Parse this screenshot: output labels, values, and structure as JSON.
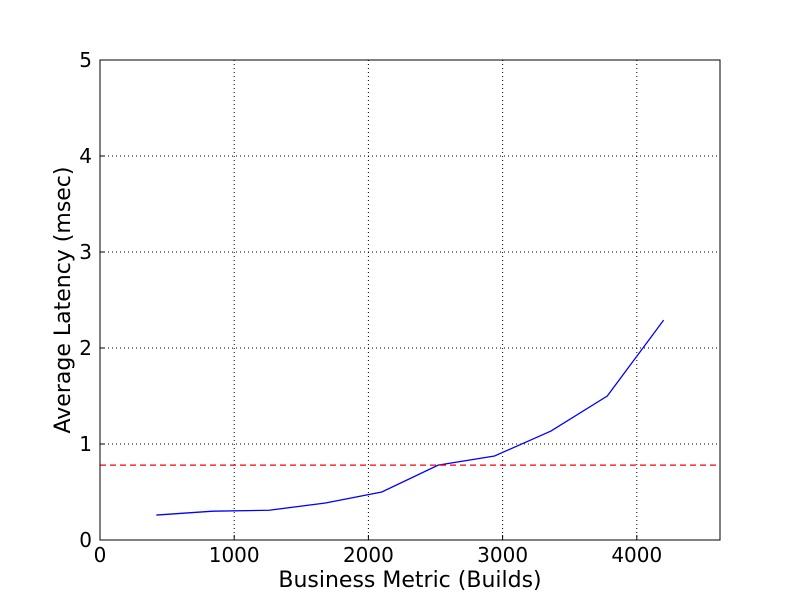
{
  "chart_data": {
    "type": "line",
    "xlabel": "Business Metric (Builds)",
    "ylabel": "Average Latency (msec)",
    "x": [
      420,
      840,
      1260,
      1680,
      2100,
      2520,
      2940,
      3360,
      3780,
      4200
    ],
    "series": [
      {
        "color": "#0000ff",
        "values": [
          0.26,
          0.3,
          0.31,
          0.385,
          0.5,
          0.78,
          0.875,
          1.135,
          1.5,
          2.29
        ]
      }
    ],
    "threshold": 0.78,
    "threshold_color": "#ff0000",
    "xlim": [
      0,
      4620
    ],
    "xticks": [
      0,
      1000,
      2000,
      3000,
      4000
    ],
    "ylim": [
      0,
      5
    ],
    "yticks": [
      0,
      1,
      2,
      3,
      4,
      5
    ],
    "grid": true
  }
}
